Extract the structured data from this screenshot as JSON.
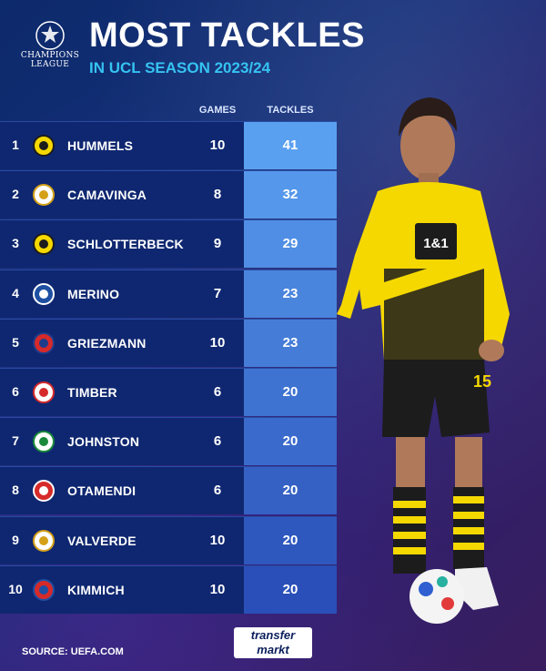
{
  "header": {
    "logo_line1": "CHAMPIONS",
    "logo_line2": "LEAGUE",
    "title": "MOST TACKLES",
    "subtitle": "IN UCL SEASON 2023/24"
  },
  "columns": {
    "games": "GAMES",
    "tackles": "TACKLES"
  },
  "rows": [
    {
      "rank": "1",
      "name": "HUMMELS",
      "games": "10",
      "tackles": "41",
      "club_icon": "dortmund-badge-icon"
    },
    {
      "rank": "2",
      "name": "CAMAVINGA",
      "games": "8",
      "tackles": "32",
      "club_icon": "real-madrid-badge-icon"
    },
    {
      "rank": "3",
      "name": "SCHLOTTERBECK",
      "games": "9",
      "tackles": "29",
      "club_icon": "dortmund-badge-icon"
    },
    {
      "rank": "4",
      "name": "MERINO",
      "games": "7",
      "tackles": "23",
      "club_icon": "real-sociedad-badge-icon"
    },
    {
      "rank": "5",
      "name": "GRIEZMANN",
      "games": "10",
      "tackles": "23",
      "club_icon": "atletico-madrid-badge-icon"
    },
    {
      "rank": "6",
      "name": "TIMBER",
      "games": "6",
      "tackles": "20",
      "club_icon": "feyenoord-badge-icon"
    },
    {
      "rank": "7",
      "name": "JOHNSTON",
      "games": "6",
      "tackles": "20",
      "club_icon": "celtic-badge-icon"
    },
    {
      "rank": "8",
      "name": "OTAMENDI",
      "games": "6",
      "tackles": "20",
      "club_icon": "benfica-badge-icon"
    },
    {
      "rank": "9",
      "name": "VALVERDE",
      "games": "10",
      "tackles": "20",
      "club_icon": "real-madrid-badge-icon"
    },
    {
      "rank": "10",
      "name": "KIMMICH",
      "games": "10",
      "tackles": "20",
      "club_icon": "bayern-badge-icon"
    }
  ],
  "footer": {
    "source": "SOURCE: UEFA.COM",
    "brand_line1": "transfer",
    "brand_line2": "markt"
  },
  "colors": {
    "accent_cyan": "#35c3f1",
    "row_dark": "#0f2770",
    "tackles_top": "#5aa0f0",
    "tackles_bottom": "#2a4fb8"
  }
}
